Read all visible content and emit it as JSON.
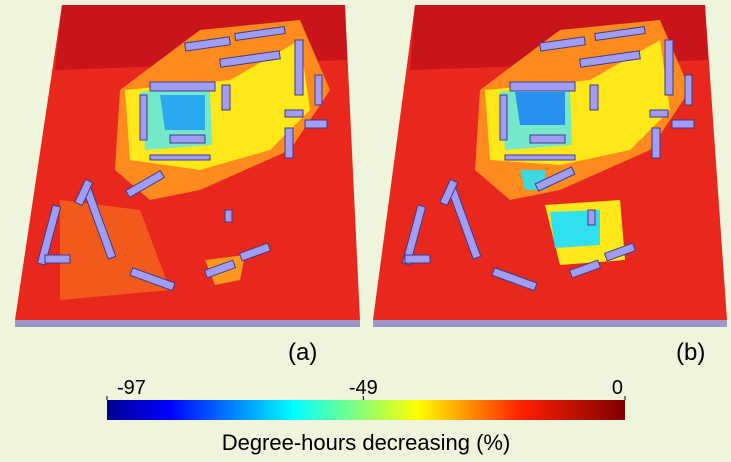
{
  "panels": [
    {
      "label": "(a)"
    },
    {
      "label": "(b)"
    }
  ],
  "colorbar": {
    "label": "Degree-hours decreasing (%)",
    "range": [
      -97,
      0
    ],
    "ticks": [
      -97,
      -49,
      0
    ]
  }
}
